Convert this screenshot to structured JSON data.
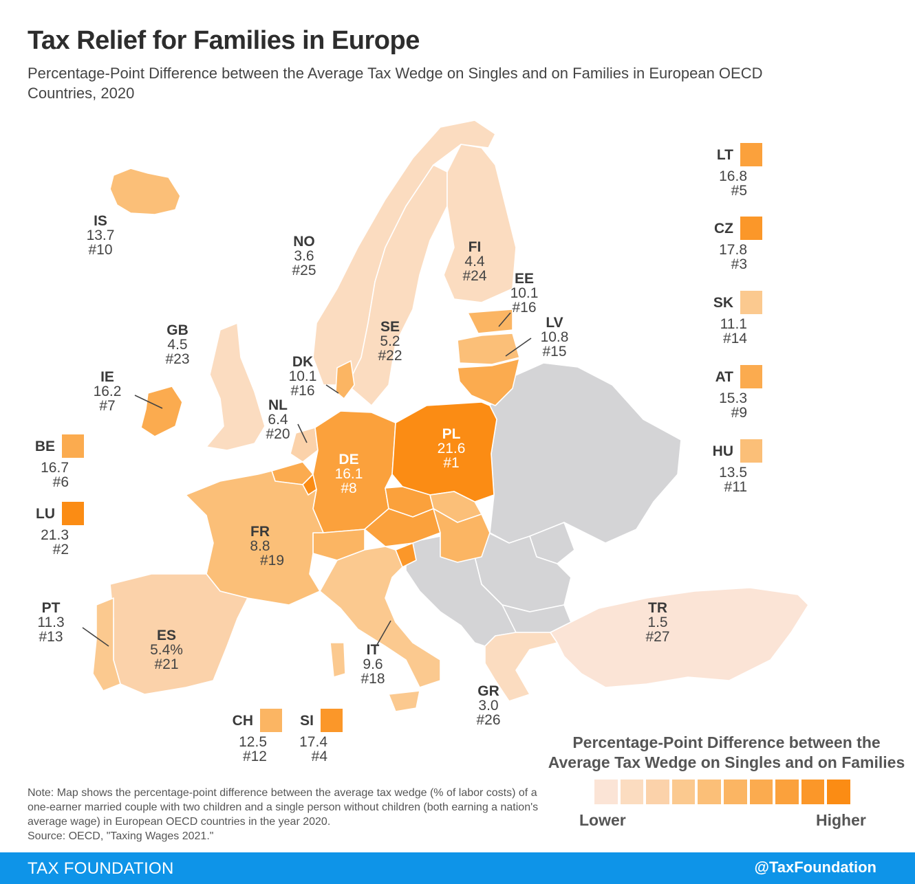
{
  "header": {
    "title": "Tax Relief for Families in Europe",
    "subtitle": "Percentage-Point Difference between the Average Tax Wedge on Singles and on Families in European OECD Countries, 2020"
  },
  "colors": {
    "no_data": "#d4d4d6",
    "border": "#ffffff",
    "scale": [
      "#fbe4d6",
      "#fbdcc0",
      "#fbd2aa",
      "#fbc98f",
      "#fbbf78",
      "#fbb563",
      "#fbab4f",
      "#fba13c",
      "#fb9729",
      "#fb8c14"
    ]
  },
  "countries": {
    "IS": {
      "code": "IS",
      "value": "13.7",
      "rank": "#10"
    },
    "NO": {
      "code": "NO",
      "value": "3.6",
      "rank": "#25"
    },
    "FI": {
      "code": "FI",
      "value": "4.4",
      "rank": "#24"
    },
    "EE": {
      "code": "EE",
      "value": "10.1",
      "rank": "#16"
    },
    "LV": {
      "code": "LV",
      "value": "10.8",
      "rank": "#15"
    },
    "GB": {
      "code": "GB",
      "value": "4.5",
      "rank": "#23"
    },
    "SE": {
      "code": "SE",
      "value": "5.2",
      "rank": "#22"
    },
    "DK": {
      "code": "DK",
      "value": "10.1",
      "rank": "#16"
    },
    "IE": {
      "code": "IE",
      "value": "16.2",
      "rank": "#7"
    },
    "NL": {
      "code": "NL",
      "value": "6.4",
      "rank": "#20"
    },
    "PL": {
      "code": "PL",
      "value": "21.6",
      "rank": "#1"
    },
    "DE": {
      "code": "DE",
      "value": "16.1",
      "rank": "#8"
    },
    "FR": {
      "code": "FR",
      "value": "8.8",
      "rank": "#19"
    },
    "PT": {
      "code": "PT",
      "value": "11.3",
      "rank": "#13"
    },
    "ES": {
      "code": "ES",
      "value": "5.4%",
      "rank": "#21"
    },
    "IT": {
      "code": "IT",
      "value": "9.6",
      "rank": "#18"
    },
    "GR": {
      "code": "GR",
      "value": "3.0",
      "rank": "#26"
    },
    "TR": {
      "code": "TR",
      "value": "1.5",
      "rank": "#27"
    },
    "BE": {
      "code": "BE",
      "value": "16.7",
      "rank": "#6"
    },
    "LU": {
      "code": "LU",
      "value": "21.3",
      "rank": "#2"
    },
    "CH": {
      "code": "CH",
      "value": "12.5",
      "rank": "#12"
    },
    "SI": {
      "code": "SI",
      "value": "17.4",
      "rank": "#4"
    },
    "LT": {
      "code": "LT",
      "value": "16.8",
      "rank": "#5"
    },
    "CZ": {
      "code": "CZ",
      "value": "17.8",
      "rank": "#3"
    },
    "SK": {
      "code": "SK",
      "value": "11.1",
      "rank": "#14"
    },
    "AT": {
      "code": "AT",
      "value": "15.3",
      "rank": "#9"
    },
    "HU": {
      "code": "HU",
      "value": "13.5",
      "rank": "#11"
    }
  },
  "legend": {
    "title": "Percentage-Point Difference between the Average Tax Wedge on Singles and on Families",
    "low": "Lower",
    "high": "Higher"
  },
  "note": "Note: Map shows the percentage-point difference between the average tax wedge (% of labor costs) of a one-earner married couple with two children and a single person without children (both earning a nation's average wage) in European OECD countries in the year 2020.",
  "source": "Source: OECD, \"Taxing Wages 2021.\"",
  "footer": {
    "brand": "TAX FOUNDATION",
    "handle": "@TaxFoundation"
  }
}
